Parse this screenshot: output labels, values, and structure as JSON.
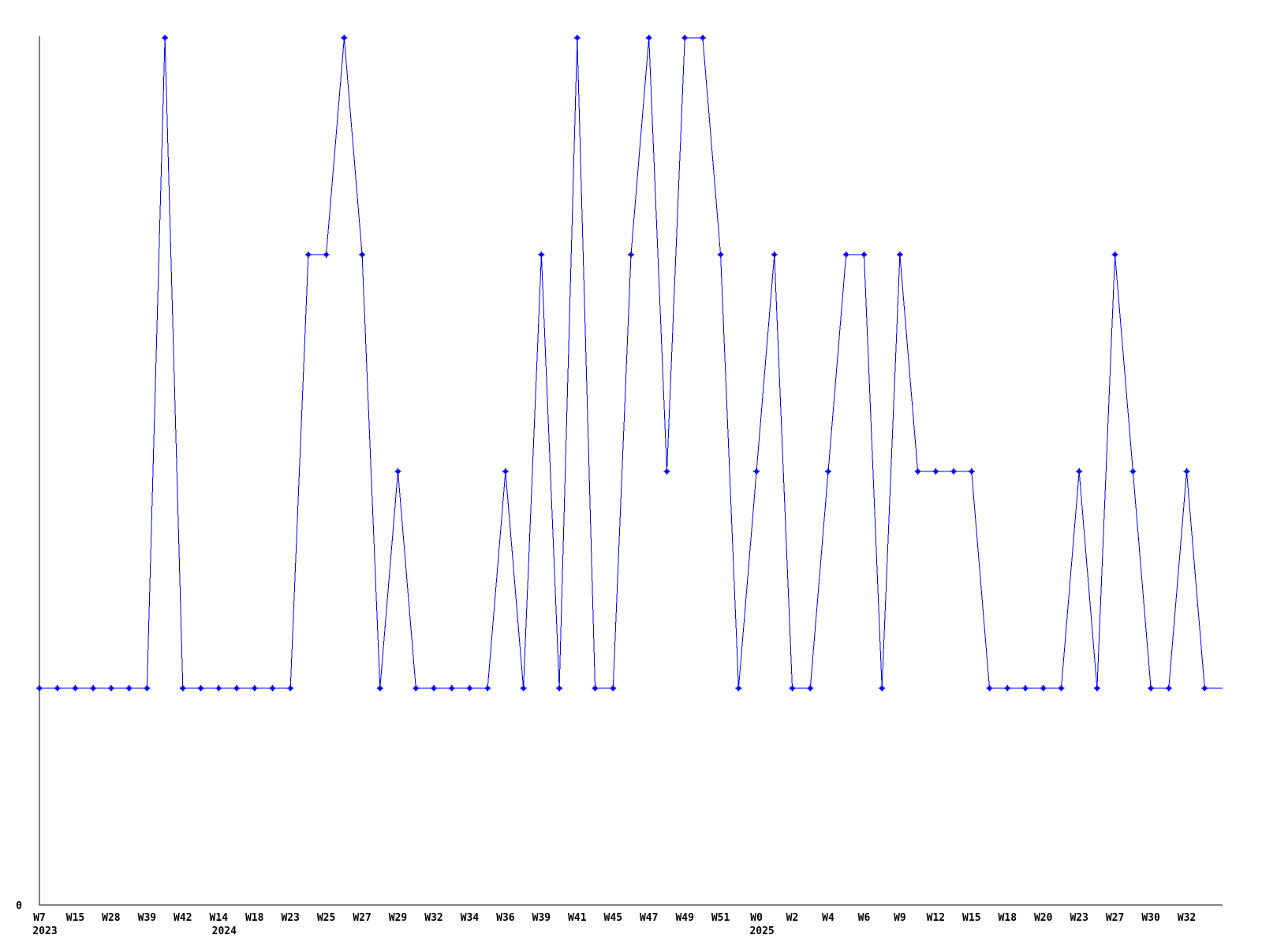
{
  "page": {
    "background_color": "#ffffff"
  },
  "chart_data": {
    "type": "line",
    "title": "",
    "legend": "none",
    "grid": false,
    "series_color": "#0000ff",
    "axis_color": "#000000",
    "marker": "plus",
    "marker_color": "#0000ff",
    "ylim": [
      0,
      4
    ],
    "y_tick_labels": [
      "0"
    ],
    "x_axis_unit": "ISO week",
    "last_marker_hidden": true,
    "values": [
      1,
      1,
      1,
      1,
      1,
      1,
      1,
      4,
      1,
      1,
      1,
      1,
      1,
      1,
      1,
      3,
      3,
      4,
      3,
      1,
      2,
      1,
      1,
      1,
      1,
      1,
      2,
      1,
      3,
      1,
      4,
      1,
      1,
      3,
      4,
      2,
      4,
      4,
      3,
      1,
      2,
      3,
      1,
      1,
      2,
      3,
      3,
      1,
      3,
      2,
      2,
      2,
      2,
      1,
      1,
      1,
      1,
      1,
      2,
      1,
      3,
      2,
      1,
      1,
      2,
      1,
      1
    ],
    "x_tick_labels": [
      {
        "i": 0,
        "week": "W7",
        "year": "2023"
      },
      {
        "i": 2,
        "week": "W15"
      },
      {
        "i": 4,
        "week": "W28"
      },
      {
        "i": 6,
        "week": "W39"
      },
      {
        "i": 8,
        "week": "W42"
      },
      {
        "i": 10,
        "week": "W14",
        "year": "2024"
      },
      {
        "i": 12,
        "week": "W18"
      },
      {
        "i": 14,
        "week": "W23"
      },
      {
        "i": 16,
        "week": "W25"
      },
      {
        "i": 18,
        "week": "W27"
      },
      {
        "i": 20,
        "week": "W29"
      },
      {
        "i": 22,
        "week": "W32"
      },
      {
        "i": 24,
        "week": "W34"
      },
      {
        "i": 26,
        "week": "W36"
      },
      {
        "i": 28,
        "week": "W39"
      },
      {
        "i": 30,
        "week": "W41"
      },
      {
        "i": 32,
        "week": "W45"
      },
      {
        "i": 34,
        "week": "W47"
      },
      {
        "i": 36,
        "week": "W49"
      },
      {
        "i": 38,
        "week": "W51"
      },
      {
        "i": 40,
        "week": "W0",
        "year": "2025"
      },
      {
        "i": 42,
        "week": "W2"
      },
      {
        "i": 44,
        "week": "W4"
      },
      {
        "i": 46,
        "week": "W6"
      },
      {
        "i": 48,
        "week": "W9"
      },
      {
        "i": 50,
        "week": "W12"
      },
      {
        "i": 52,
        "week": "W15"
      },
      {
        "i": 54,
        "week": "W18"
      },
      {
        "i": 56,
        "week": "W20"
      },
      {
        "i": 58,
        "week": "W23"
      },
      {
        "i": 60,
        "week": "W27"
      },
      {
        "i": 62,
        "week": "W30"
      },
      {
        "i": 64,
        "week": "W32"
      }
    ]
  }
}
